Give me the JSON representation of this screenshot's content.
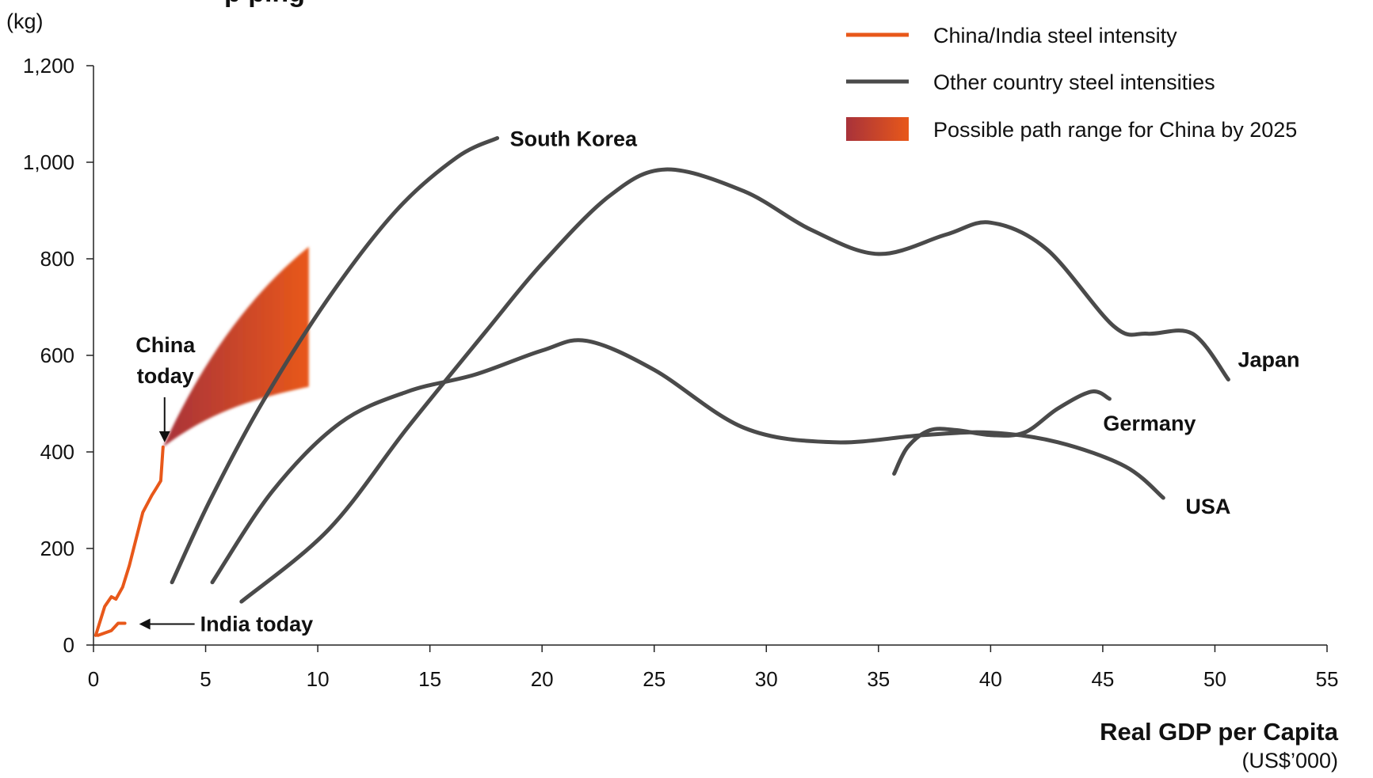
{
  "chart_data": {
    "type": "line",
    "title_fragment": "p                                                     ping",
    "ylabel": "(kg)",
    "xlabel": "Real GDP per Capita",
    "xunit": "(US$’000)",
    "xlim": [
      0,
      55
    ],
    "ylim": [
      0,
      1200
    ],
    "x_ticks": [
      0,
      5,
      10,
      15,
      20,
      25,
      30,
      35,
      40,
      45,
      50,
      55
    ],
    "x_tick_labels": [
      "0",
      "5",
      "10",
      "15",
      "20",
      "25",
      "30",
      "35",
      "40",
      "45",
      "50",
      "55"
    ],
    "y_ticks": [
      0,
      200,
      400,
      600,
      800,
      1000,
      1200
    ],
    "y_tick_labels": [
      "0",
      "200",
      "400",
      "600",
      "800",
      "1,000",
      "1,200"
    ],
    "grid": false,
    "legend_position": "top-right",
    "legend": [
      {
        "label": "China/India steel intensity",
        "type": "line",
        "color": "#e8581a"
      },
      {
        "label": "Other country steel intensities",
        "type": "line",
        "color": "#4a4a4a"
      },
      {
        "label": "Possible path range for China by 2025",
        "type": "area",
        "color_start": "#a8323a",
        "color_end": "#e8581a"
      }
    ],
    "series": [
      {
        "name": "South Korea",
        "color": "#4a4a4a",
        "x": [
          3.5,
          5.2,
          7.5,
          10.5,
          13.5,
          16.2,
          18.0
        ],
        "y": [
          130,
          300,
          500,
          720,
          900,
          1010,
          1050
        ]
      },
      {
        "name": "Japan",
        "color": "#4a4a4a",
        "x": [
          6.6,
          10.5,
          14.0,
          17.5,
          20.0,
          23.0,
          25.5,
          29.0,
          32.0,
          35.0,
          38.0,
          40.0,
          42.5,
          45.5,
          47.0,
          49.0,
          50.6
        ],
        "y": [
          90,
          240,
          450,
          650,
          790,
          930,
          985,
          940,
          860,
          810,
          850,
          875,
          820,
          660,
          645,
          645,
          550
        ]
      },
      {
        "name": "USA",
        "color": "#4a4a4a",
        "x": [
          5.3,
          8.0,
          11.0,
          14.0,
          17.0,
          20.0,
          22.0,
          25.0,
          29.0,
          33.0,
          37.0,
          40.0,
          43.0,
          46.0,
          47.7
        ],
        "y": [
          130,
          320,
          460,
          525,
          560,
          610,
          630,
          570,
          450,
          420,
          435,
          440,
          420,
          370,
          305
        ]
      },
      {
        "name": "Germany",
        "color": "#4a4a4a",
        "x": [
          35.7,
          36.3,
          37.3,
          38.5,
          40.0,
          41.5,
          43.0,
          44.5,
          45.3
        ],
        "y": [
          355,
          410,
          445,
          445,
          435,
          440,
          490,
          525,
          510
        ]
      },
      {
        "name": "China",
        "color": "#e8581a",
        "x": [
          0.1,
          0.3,
          0.5,
          0.8,
          1.0,
          1.3,
          1.6,
          1.9,
          2.2,
          2.6,
          2.8,
          3.0,
          3.1
        ],
        "y": [
          20,
          50,
          80,
          100,
          95,
          120,
          165,
          220,
          275,
          310,
          325,
          340,
          410
        ]
      },
      {
        "name": "India",
        "color": "#e8581a",
        "x": [
          0.2,
          0.5,
          0.8,
          1.1,
          1.4
        ],
        "y": [
          20,
          25,
          30,
          45,
          45
        ]
      }
    ],
    "range_area": {
      "name": "Possible path range for China by 2025",
      "x_start": 3.1,
      "y_start": 410,
      "x_end": 9.6,
      "upper_end": 825,
      "lower_end": 535
    },
    "labels": [
      {
        "series": "South Korea",
        "text": "South Korea"
      },
      {
        "series": "Japan",
        "text": "Japan"
      },
      {
        "series": "Germany",
        "text": "Germany"
      },
      {
        "series": "USA",
        "text": "USA"
      }
    ],
    "annotations": [
      {
        "id": "china_today",
        "lines": [
          "China",
          "today"
        ],
        "x": 3.1,
        "y": 410
      },
      {
        "id": "india_today",
        "text": "India today",
        "x": 1.4,
        "y": 45
      }
    ]
  }
}
